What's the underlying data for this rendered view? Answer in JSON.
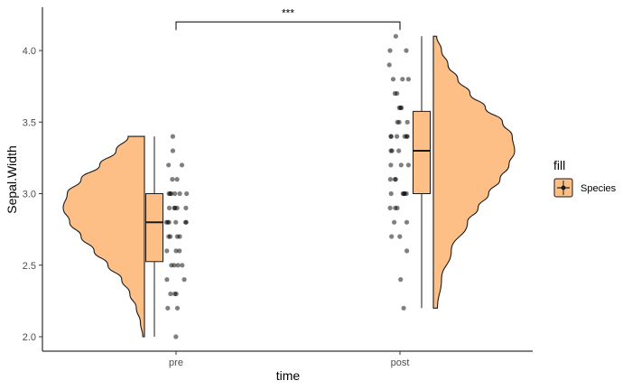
{
  "chart_data": {
    "type": "raincloud",
    "xlabel": "time",
    "ylabel": "Sepal.Width",
    "categories": [
      "pre",
      "post"
    ],
    "ylim": [
      1.95,
      4.2
    ],
    "yticks": [
      2.0,
      2.5,
      3.0,
      3.5,
      4.0
    ],
    "ytick_labels": [
      "2.0",
      "2.5",
      "3.0",
      "3.5",
      "4.0"
    ],
    "colors": {
      "fill": "#FDBF85",
      "stroke": "#1a1a1a",
      "point": "#000000"
    },
    "legend": {
      "title": "fill",
      "label": "Species",
      "position": "right"
    },
    "significance": {
      "label": "***",
      "from": "pre",
      "to": "post",
      "y": 4.2
    },
    "groups": [
      {
        "name": "pre",
        "box": {
          "min": 2.0,
          "q1": 2.525,
          "median": 2.8,
          "q3": 3.0,
          "max": 3.4
        },
        "density": [
          [
            2.0,
            0.02
          ],
          [
            2.1,
            0.05
          ],
          [
            2.2,
            0.1
          ],
          [
            2.3,
            0.18
          ],
          [
            2.4,
            0.28
          ],
          [
            2.5,
            0.45
          ],
          [
            2.6,
            0.62
          ],
          [
            2.7,
            0.78
          ],
          [
            2.8,
            0.92
          ],
          [
            2.9,
            1.0
          ],
          [
            3.0,
            0.95
          ],
          [
            3.1,
            0.78
          ],
          [
            3.2,
            0.55
          ],
          [
            3.3,
            0.35
          ],
          [
            3.4,
            0.2
          ]
        ],
        "points": [
          2.0,
          2.2,
          2.2,
          2.3,
          2.3,
          2.3,
          2.4,
          2.4,
          2.5,
          2.5,
          2.5,
          2.5,
          2.6,
          2.6,
          2.6,
          2.7,
          2.7,
          2.7,
          2.7,
          2.8,
          2.8,
          2.8,
          2.8,
          2.8,
          2.8,
          2.9,
          2.9,
          2.9,
          2.9,
          2.9,
          3.0,
          3.0,
          3.0,
          3.0,
          3.0,
          3.0,
          3.1,
          3.1,
          3.2,
          3.2,
          3.3,
          3.4
        ]
      },
      {
        "name": "post",
        "box": {
          "min": 2.2,
          "q1": 3.0,
          "median": 3.3,
          "q3": 3.575,
          "max": 4.1
        },
        "density": [
          [
            2.2,
            0.05
          ],
          [
            2.4,
            0.1
          ],
          [
            2.6,
            0.22
          ],
          [
            2.8,
            0.42
          ],
          [
            2.9,
            0.55
          ],
          [
            3.0,
            0.68
          ],
          [
            3.1,
            0.82
          ],
          [
            3.2,
            0.93
          ],
          [
            3.3,
            1.0
          ],
          [
            3.4,
            0.97
          ],
          [
            3.5,
            0.85
          ],
          [
            3.6,
            0.64
          ],
          [
            3.7,
            0.45
          ],
          [
            3.8,
            0.3
          ],
          [
            3.9,
            0.18
          ],
          [
            4.0,
            0.1
          ],
          [
            4.1,
            0.04
          ]
        ],
        "points": [
          2.2,
          2.4,
          2.6,
          2.7,
          2.7,
          2.8,
          2.8,
          2.9,
          2.9,
          2.9,
          3.0,
          3.0,
          3.0,
          3.0,
          3.0,
          3.1,
          3.1,
          3.1,
          3.2,
          3.2,
          3.2,
          3.3,
          3.3,
          3.3,
          3.4,
          3.4,
          3.4,
          3.4,
          3.4,
          3.4,
          3.5,
          3.5,
          3.5,
          3.6,
          3.6,
          3.6,
          3.7,
          3.7,
          3.8,
          3.8,
          3.8,
          3.9,
          4.0,
          4.0,
          4.1
        ]
      }
    ]
  }
}
